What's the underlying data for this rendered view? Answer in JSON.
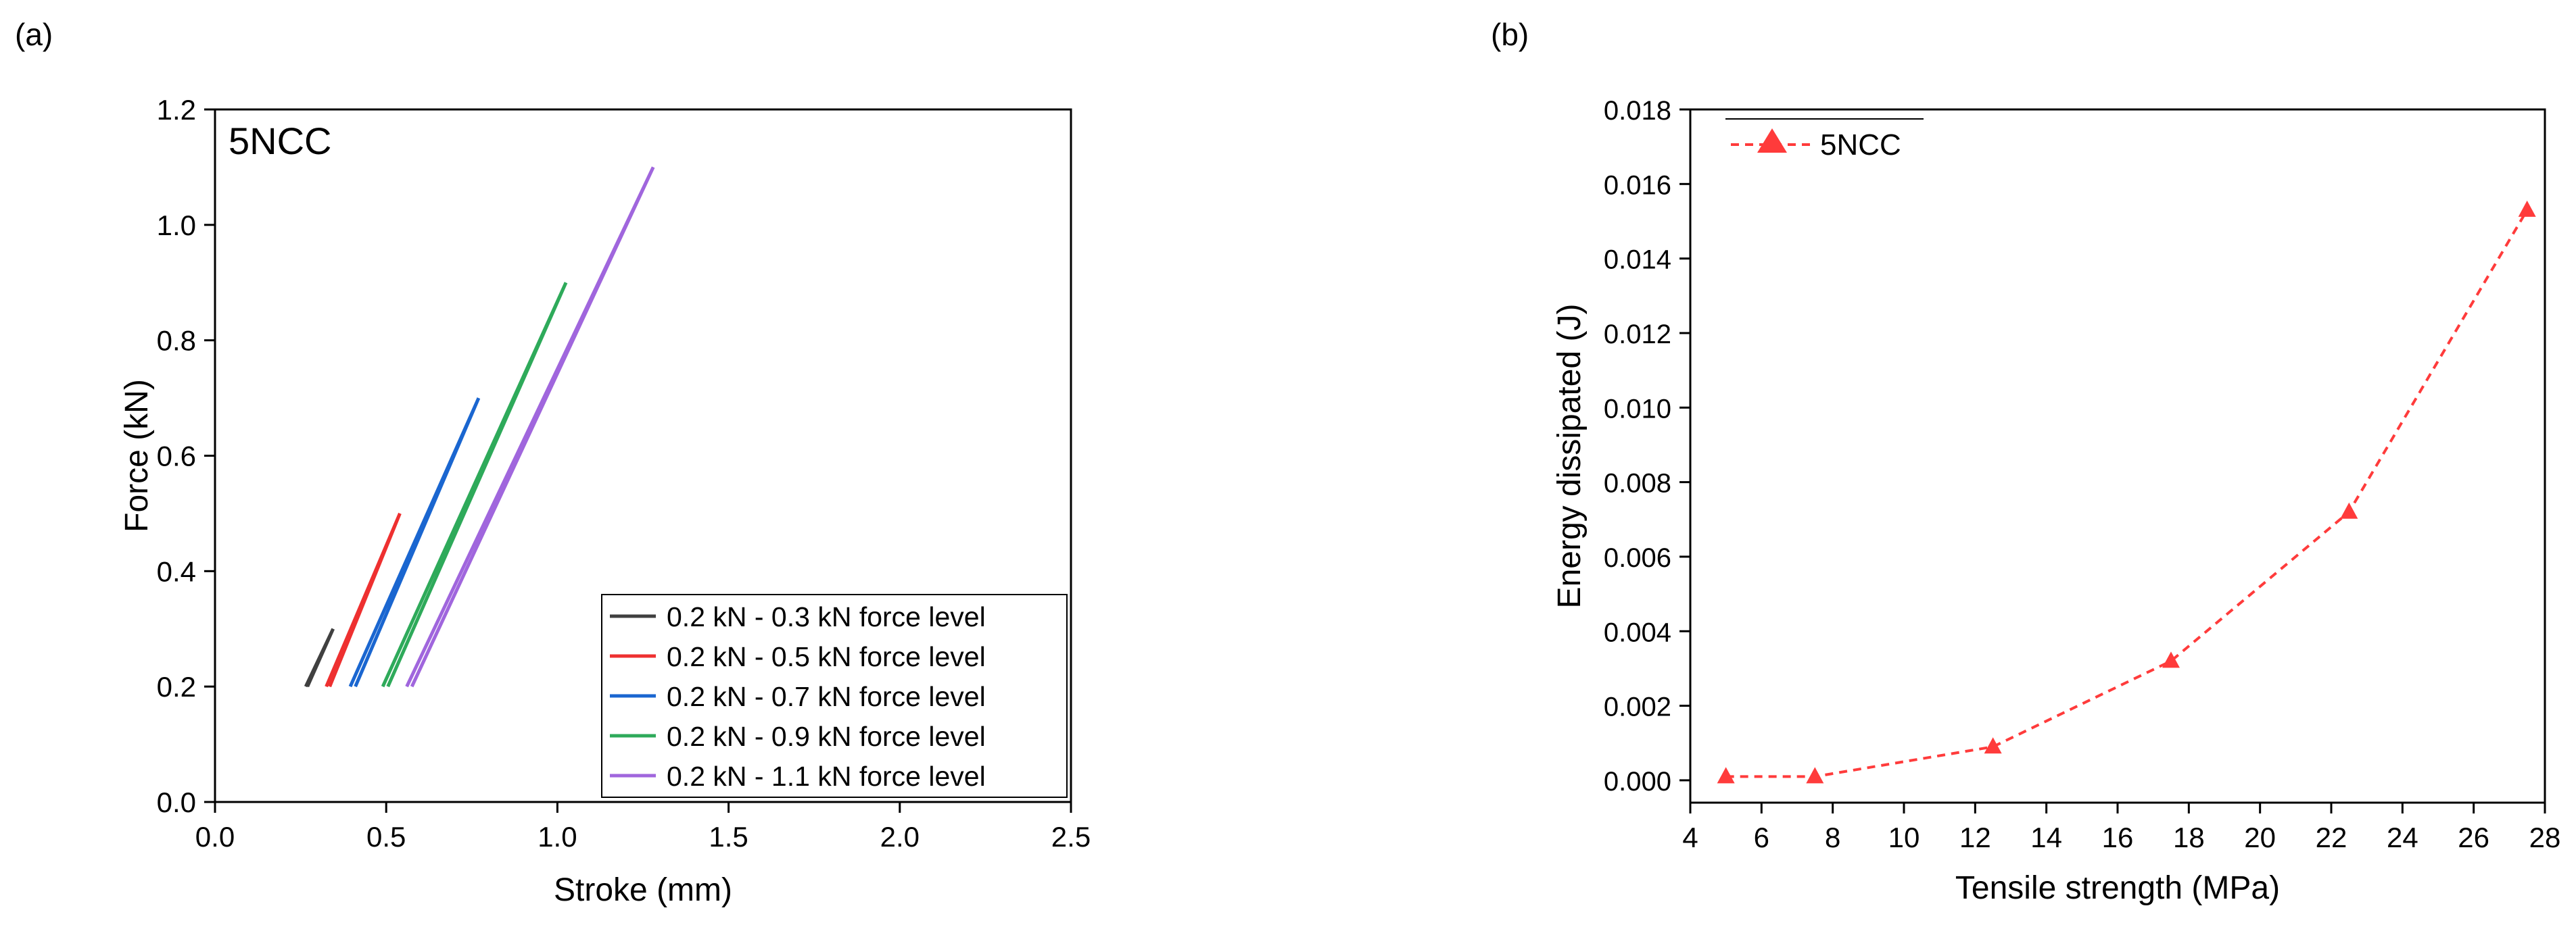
{
  "panels": {
    "a_label": "(a)",
    "b_label": "(b)"
  },
  "chart_data": [
    {
      "type": "line",
      "panel": "(a)",
      "annotation": "5NCC",
      "xlabel": "Stroke (mm)",
      "ylabel": "Force (kN)",
      "xlim": [
        0.0,
        2.5
      ],
      "ylim": [
        0.0,
        1.2
      ],
      "xticks": [
        "0.0",
        "0.5",
        "1.0",
        "1.5",
        "2.0",
        "2.5"
      ],
      "yticks": [
        "0.0",
        "0.2",
        "0.4",
        "0.6",
        "0.8",
        "1.0",
        "1.2"
      ],
      "legend_position": "bottom-right",
      "series": [
        {
          "name": "0.2 kN - 0.3 kN force level",
          "color": "#404040",
          "loading": [
            [
              0.27,
              0.2
            ],
            [
              0.345,
              0.3
            ]
          ],
          "unloading": [
            [
              0.345,
              0.3
            ],
            [
              0.265,
              0.2
            ]
          ]
        },
        {
          "name": "0.2 kN - 0.5 kN force level",
          "color": "#ee3030",
          "loading": [
            [
              0.335,
              0.2
            ],
            [
              0.54,
              0.5
            ]
          ],
          "unloading": [
            [
              0.54,
              0.5
            ],
            [
              0.325,
              0.2
            ]
          ]
        },
        {
          "name": "0.2 kN - 0.7 kN force level",
          "color": "#1a66d0",
          "loading": [
            [
              0.41,
              0.2
            ],
            [
              0.77,
              0.7
            ]
          ],
          "unloading": [
            [
              0.77,
              0.7
            ],
            [
              0.395,
              0.2
            ]
          ]
        },
        {
          "name": "0.2 kN - 0.9 kN force level",
          "color": "#2eaa5a",
          "loading": [
            [
              0.505,
              0.2
            ],
            [
              1.025,
              0.9
            ]
          ],
          "unloading": [
            [
              1.025,
              0.9
            ],
            [
              0.49,
              0.2
            ]
          ]
        },
        {
          "name": "0.2 kN - 1.1 kN force level",
          "color": "#a066dd",
          "loading": [
            [
              0.575,
              0.2
            ],
            [
              1.28,
              1.1
            ]
          ],
          "unloading": [
            [
              1.28,
              1.1
            ],
            [
              0.56,
              0.2
            ]
          ]
        }
      ]
    },
    {
      "type": "line",
      "panel": "(b)",
      "xlabel": "Tensile strength (MPa)",
      "ylabel": "Energy dissipated (J)",
      "xlim": [
        4,
        28
      ],
      "ylim": [
        -0.0006,
        0.018
      ],
      "xticks": [
        "4",
        "6",
        "8",
        "10",
        "12",
        "14",
        "16",
        "18",
        "20",
        "22",
        "24",
        "26",
        "28"
      ],
      "yticks": [
        "0.000",
        "0.002",
        "0.004",
        "0.006",
        "0.008",
        "0.010",
        "0.012",
        "0.014",
        "0.016",
        "0.018"
      ],
      "legend_position": "top-left",
      "series": [
        {
          "name": "5NCC",
          "color": "#ff3b3b",
          "marker": "triangle",
          "line_style": "dashed",
          "x": [
            5,
            7.5,
            12.5,
            17.5,
            22.5,
            27.5
          ],
          "y": [
            0.0001,
            0.0001,
            0.0009,
            0.0032,
            0.0072,
            0.0153
          ]
        }
      ]
    }
  ]
}
